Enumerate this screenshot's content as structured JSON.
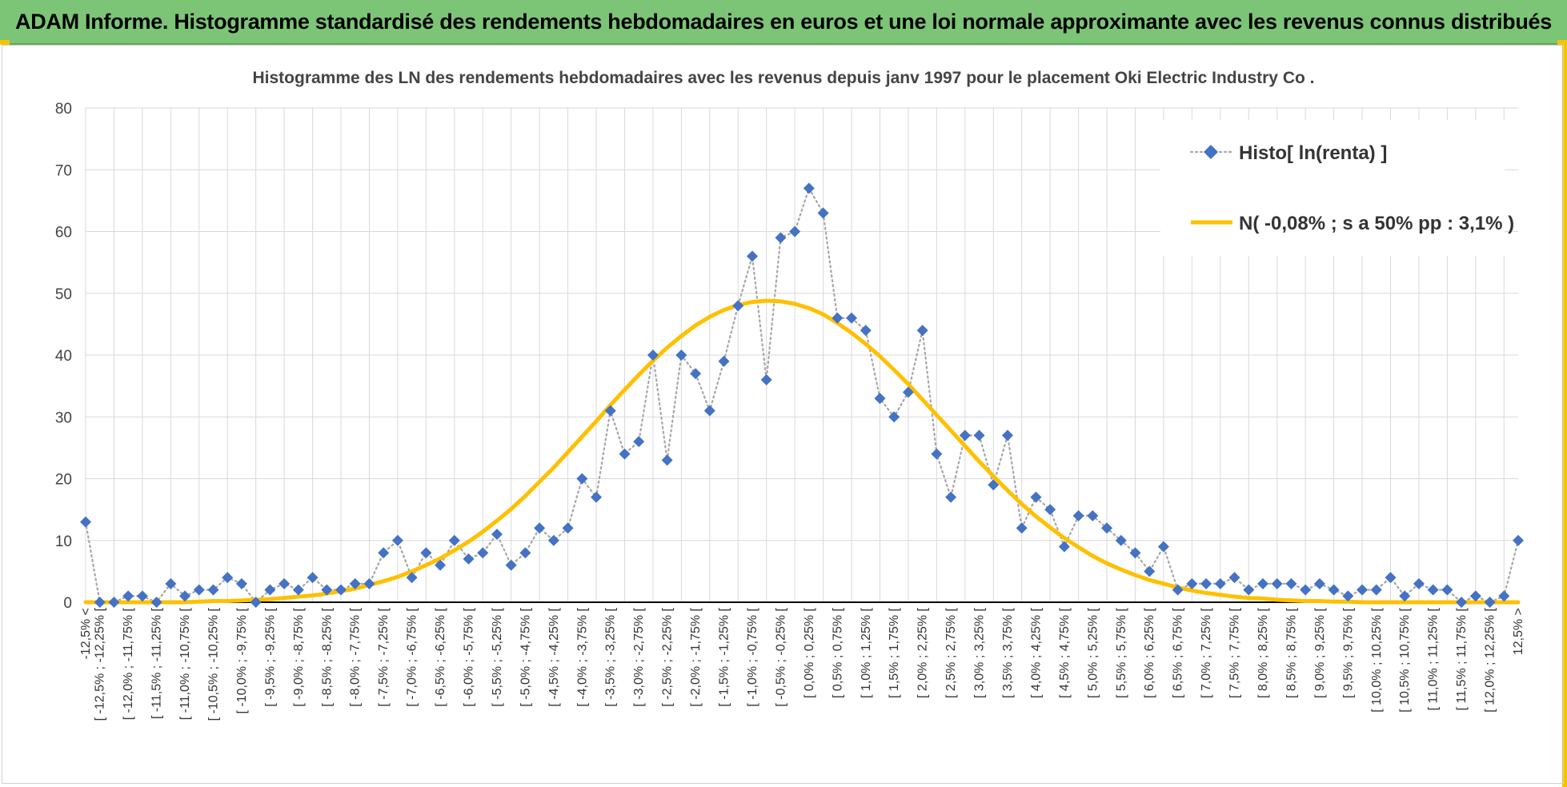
{
  "banner": {
    "title": "ADAM Informe. Histogramme standardisé des rendements hebdomadaires en euros et une loi normale approximante avec les revenus connus distribués"
  },
  "chart_data": {
    "type": "line",
    "title": "Histogramme des LN des rendements hebdomadaires avec les revenus depuis janv 1997 pour le placement Oki Electric Industry Co .",
    "xlabel": "",
    "ylabel": "",
    "ylim": [
      0,
      80
    ],
    "yticks": [
      0,
      10,
      20,
      30,
      40,
      50,
      60,
      70,
      80
    ],
    "grid": true,
    "legend_position": "top-right",
    "categories": [
      "-12,5% <",
      "[ -12,5% ; -12,25% [",
      "[ -12,25% ; -12,0% [",
      "[ -12,0% ; -11,75% [",
      "[ -11,75% ; -11,5% [",
      "[ -11,5% ; -11,25% [",
      "[ -11,25% ; -11,0% [",
      "[ -11,0% ; -10,75% [",
      "[ -10,75% ; -10,5% [",
      "[ -10,5% ; -10,25% [",
      "[ -10,25% ; -10,0% [",
      "[ -10,0% ; -9,75% [",
      "[ -9,75% ; -9,5% [",
      "[ -9,5% ; -9,25% [",
      "[ -9,25% ; -9,0% [",
      "[ -9,0% ; -8,75% [",
      "[ -8,75% ; -8,5% [",
      "[ -8,5% ; -8,25% [",
      "[ -8,25% ; -8,0% [",
      "[ -8,0% ; -7,75% [",
      "[ -7,75% ; -7,5% [",
      "[ -7,5% ; -7,25% [",
      "[ -7,25% ; -7,0% [",
      "[ -7,0% ; -6,75% [",
      "[ -6,75% ; -6,5% [",
      "[ -6,5% ; -6,25% [",
      "[ -6,25% ; -6,0% [",
      "[ -6,0% ; -5,75% [",
      "[ -5,75% ; -5,5% [",
      "[ -5,5% ; -5,25% [",
      "[ -5,25% ; -5,0% [",
      "[ -5,0% ; -4,75% [",
      "[ -4,75% ; -4,5% [",
      "[ -4,5% ; -4,25% [",
      "[ -4,25% ; -4,0% [",
      "[ -4,0% ; -3,75% [",
      "[ -3,75% ; -3,5% [",
      "[ -3,5% ; -3,25% [",
      "[ -3,25% ; -3,0% [",
      "[ -3,0% ; -2,75% [",
      "[ -2,75% ; -2,5% [",
      "[ -2,5% ; -2,25% [",
      "[ -2,25% ; -2,0% [",
      "[ -2,0% ; -1,75% [",
      "[ -1,75% ; -1,5% [",
      "[ -1,5% ; -1,25% [",
      "[ -1,25% ; -1,0% [",
      "[ -1,0% ; -0,75% [",
      "[ -0,75% ; -0,5% [",
      "[ -0,5% ; -0,25% [",
      "[ -0,25% ; 0,0% [",
      "[ 0,0% ; 0,25% [",
      "[ 0,25% ; 0,5% [",
      "[ 0,5% ; 0,75% [",
      "[ 0,75% ; 1,0% [",
      "[ 1,0% ; 1,25% [",
      "[ 1,25% ; 1,5% [",
      "[ 1,5% ; 1,75% [",
      "[ 1,75% ; 2,0% [",
      "[ 2,0% ; 2,25% [",
      "[ 2,25% ; 2,5% [",
      "[ 2,5% ; 2,75% [",
      "[ 2,75% ; 3,0% [",
      "[ 3,0% ; 3,25% [",
      "[ 3,25% ; 3,5% [",
      "[ 3,5% ; 3,75% [",
      "[ 3,75% ; 4,0% [",
      "[ 4,0% ; 4,25% [",
      "[ 4,25% ; 4,5% [",
      "[ 4,5% ; 4,75% [",
      "[ 4,75% ; 5,0% [",
      "[ 5,0% ; 5,25% [",
      "[ 5,25% ; 5,5% [",
      "[ 5,5% ; 5,75% [",
      "[ 5,75% ; 6,0% [",
      "[ 6,0% ; 6,25% [",
      "[ 6,25% ; 6,5% [",
      "[ 6,5% ; 6,75% [",
      "[ 6,75% ; 7,0% [",
      "[ 7,0% ; 7,25% [",
      "[ 7,25% ; 7,5% [",
      "[ 7,5% ; 7,75% [",
      "[ 7,75% ; 8,0% [",
      "[ 8,0% ; 8,25% [",
      "[ 8,25% ; 8,5% [",
      "[ 8,5% ; 8,75% [",
      "[ 8,75% ; 9,0% [",
      "[ 9,0% ; 9,25% [",
      "[ 9,25% ; 9,5% [",
      "[ 9,5% ; 9,75% [",
      "[ 9,75% ; 10,0% [",
      "[ 10,0% ; 10,25% [",
      "[ 10,25% ; 10,5% [",
      "[ 10,5% ; 10,75% [",
      "[ 10,75% ; 11,0% [",
      "[ 11,0% ; 11,25% [",
      "[ 11,25% ; 11,5% [",
      "[ 11,5% ; 11,75% [",
      "[ 11,75% ; 12,0% [",
      "[ 12,0% ; 12,25% [",
      "[ 12,25% ; 12,5% [",
      "12,5% >"
    ],
    "series": [
      {
        "name": "Histo[ ln(renta) ]",
        "style": "dotted-line-diamond-markers",
        "color": "#4472c4",
        "values": [
          13,
          0,
          0,
          1,
          1,
          0,
          3,
          1,
          2,
          2,
          4,
          3,
          0,
          2,
          3,
          2,
          4,
          2,
          2,
          3,
          3,
          8,
          10,
          4,
          8,
          6,
          10,
          7,
          8,
          11,
          6,
          8,
          12,
          10,
          12,
          20,
          17,
          31,
          24,
          26,
          40,
          23,
          40,
          37,
          31,
          39,
          48,
          56,
          36,
          59,
          60,
          67,
          63,
          46,
          46,
          44,
          33,
          30,
          34,
          44,
          24,
          17,
          27,
          27,
          19,
          27,
          12,
          17,
          15,
          9,
          14,
          14,
          12,
          10,
          8,
          5,
          9,
          2,
          3,
          3,
          3,
          4,
          2,
          3,
          3,
          3,
          2,
          3,
          2,
          1,
          2,
          2,
          4,
          1,
          3,
          2,
          2,
          0,
          1,
          0,
          1,
          10
        ]
      },
      {
        "name": "N( -0,08% ; s a 50% pp : 3,1% )",
        "style": "solid-line",
        "color": "#ffc000",
        "values": [
          0,
          0,
          0,
          0,
          0,
          0,
          0,
          0,
          0.1,
          0.2,
          0.2,
          0.3,
          0.4,
          0.5,
          0.7,
          0.9,
          1.1,
          1.4,
          1.8,
          2.2,
          2.8,
          3.4,
          4.1,
          5.0,
          6.0,
          7.1,
          8.4,
          9.8,
          11.4,
          13.2,
          15.1,
          17.2,
          19.5,
          21.8,
          24.3,
          26.8,
          29.3,
          31.9,
          34.4,
          36.8,
          39.1,
          41.2,
          43.1,
          44.8,
          46.2,
          47.3,
          48.1,
          48.6,
          48.8,
          48.7,
          48.3,
          47.6,
          46.6,
          45.2,
          43.6,
          41.8,
          39.8,
          37.6,
          35.3,
          32.8,
          30.3,
          27.8,
          25.3,
          22.8,
          20.4,
          18.1,
          15.9,
          13.9,
          12.1,
          10.4,
          8.9,
          7.5,
          6.3,
          5.3,
          4.4,
          3.6,
          3.0,
          2.4,
          1.9,
          1.5,
          1.2,
          0.9,
          0.7,
          0.6,
          0.4,
          0.3,
          0.2,
          0.2,
          0.1,
          0.1,
          0,
          0,
          0,
          0,
          0,
          0,
          0,
          0,
          0,
          0,
          0,
          0
        ]
      }
    ]
  }
}
